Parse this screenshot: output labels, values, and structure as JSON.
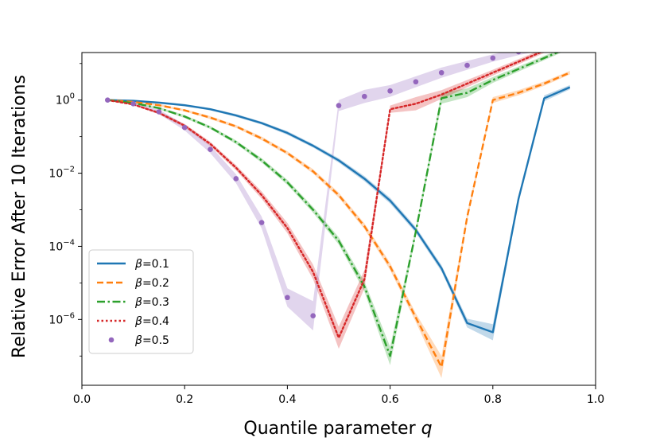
{
  "chart_data": {
    "type": "line",
    "title": "",
    "xlabel": "Quantile parameter ",
    "xlabel_var": "q",
    "ylabel": "Relative Error After 10 Iterations",
    "xlim": [
      0.0,
      1.0
    ],
    "ylim_log10": [
      -7.8,
      1.3
    ],
    "yscale": "log",
    "grid": false,
    "legend_position": "lower-left",
    "x_ticks": [
      {
        "value": 0.0,
        "label": "0.0"
      },
      {
        "value": 0.2,
        "label": "0.2"
      },
      {
        "value": 0.4,
        "label": "0.4"
      },
      {
        "value": 0.6,
        "label": "0.6"
      },
      {
        "value": 0.8,
        "label": "0.8"
      },
      {
        "value": 1.0,
        "label": "1.0"
      }
    ],
    "y_ticks": [
      {
        "exp": 0,
        "base": "10",
        "sup": "0"
      },
      {
        "exp": -2,
        "base": "10",
        "sup": "−2"
      },
      {
        "exp": -4,
        "base": "10",
        "sup": "−4"
      },
      {
        "exp": -6,
        "base": "10",
        "sup": "−6"
      }
    ],
    "series": [
      {
        "name": "β=0.1",
        "color": "#1f77b4",
        "style": "solid",
        "x": [
          0.05,
          0.1,
          0.15,
          0.2,
          0.25,
          0.3,
          0.35,
          0.4,
          0.45,
          0.5,
          0.55,
          0.6,
          0.65,
          0.7,
          0.75,
          0.8,
          0.85,
          0.9,
          0.95
        ],
        "y_log10": [
          0.0,
          -0.02,
          -0.07,
          -0.14,
          -0.25,
          -0.42,
          -0.63,
          -0.9,
          -1.25,
          -1.65,
          -2.15,
          -2.75,
          -3.55,
          -4.6,
          -6.1,
          -6.35,
          -2.7,
          0.05,
          0.35
        ],
        "band": [
          0.0,
          0.02,
          0.03,
          0.03,
          0.03,
          0.04,
          0.04,
          0.05,
          0.05,
          0.06,
          0.07,
          0.08,
          0.08,
          0.09,
          0.12,
          0.22,
          0.08,
          0.08,
          0.06
        ]
      },
      {
        "name": "β=0.2",
        "color": "#ff7f0e",
        "style": "dashed",
        "x": [
          0.05,
          0.1,
          0.15,
          0.2,
          0.25,
          0.3,
          0.35,
          0.4,
          0.45,
          0.5,
          0.55,
          0.6,
          0.65,
          0.7,
          0.75,
          0.8,
          0.85,
          0.9,
          0.95
        ],
        "y_log10": [
          0.0,
          -0.05,
          -0.14,
          -0.28,
          -0.48,
          -0.72,
          -1.05,
          -1.45,
          -1.95,
          -2.6,
          -3.45,
          -4.55,
          -5.95,
          -7.3,
          -3.2,
          0.0,
          0.2,
          0.45,
          0.75
        ],
        "band": [
          0.0,
          0.02,
          0.03,
          0.03,
          0.04,
          0.04,
          0.05,
          0.05,
          0.06,
          0.07,
          0.08,
          0.1,
          0.12,
          0.3,
          0.1,
          0.08,
          0.07,
          0.06,
          0.05
        ]
      },
      {
        "name": "β=0.3",
        "color": "#2ca02c",
        "style": "dashdot",
        "x": [
          0.05,
          0.1,
          0.15,
          0.2,
          0.25,
          0.3,
          0.35,
          0.4,
          0.45,
          0.5,
          0.55,
          0.6,
          0.65,
          0.7,
          0.75,
          0.8,
          0.85,
          0.9,
          0.95
        ],
        "y_log10": [
          0.0,
          -0.08,
          -0.22,
          -0.45,
          -0.75,
          -1.15,
          -1.65,
          -2.25,
          -3.0,
          -3.85,
          -5.1,
          -7.0,
          -3.6,
          0.05,
          0.2,
          0.55,
          0.85,
          1.15,
          1.45
        ],
        "band": [
          0.0,
          0.02,
          0.03,
          0.04,
          0.04,
          0.05,
          0.06,
          0.07,
          0.08,
          0.1,
          0.14,
          0.25,
          0.1,
          0.15,
          0.12,
          0.08,
          0.07,
          0.06,
          0.05
        ]
      },
      {
        "name": "β=0.4",
        "color": "#d62728",
        "style": "dotted",
        "x": [
          0.05,
          0.1,
          0.15,
          0.2,
          0.25,
          0.3,
          0.35,
          0.4,
          0.45,
          0.5,
          0.55,
          0.6,
          0.65,
          0.7,
          0.75,
          0.8,
          0.85,
          0.9,
          0.95
        ],
        "y_log10": [
          0.0,
          -0.12,
          -0.35,
          -0.7,
          -1.2,
          -1.85,
          -2.6,
          -3.5,
          -4.7,
          -6.5,
          -4.9,
          -0.25,
          -0.1,
          0.15,
          0.45,
          0.75,
          1.05,
          1.35,
          1.55
        ],
        "band": [
          0.0,
          0.02,
          0.04,
          0.05,
          0.06,
          0.07,
          0.1,
          0.14,
          0.2,
          0.3,
          0.25,
          0.1,
          0.18,
          0.12,
          0.1,
          0.08,
          0.07,
          0.06,
          0.05
        ]
      },
      {
        "name": "β=0.5",
        "color": "#9467bd",
        "style": "markers",
        "x": [
          0.05,
          0.1,
          0.15,
          0.2,
          0.25,
          0.3,
          0.35,
          0.4,
          0.45,
          0.5,
          0.55,
          0.6,
          0.65,
          0.7,
          0.75,
          0.8,
          0.85,
          0.9,
          0.95
        ],
        "y_log10": [
          0.0,
          -0.1,
          -0.32,
          -0.75,
          -1.35,
          -2.15,
          -3.35,
          -5.4,
          -5.9,
          -0.15,
          0.1,
          0.25,
          0.5,
          0.75,
          0.95,
          1.15,
          1.32,
          1.45,
          1.7
        ],
        "band": [
          0.0,
          0.04,
          0.06,
          0.08,
          0.1,
          0.12,
          0.16,
          0.25,
          0.4,
          0.15,
          0.18,
          0.16,
          0.15,
          0.14,
          0.12,
          0.1,
          0.09,
          0.08,
          0.07
        ]
      }
    ]
  }
}
